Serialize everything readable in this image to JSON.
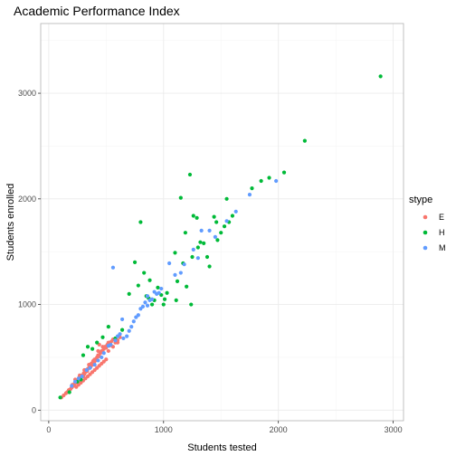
{
  "chart_data": {
    "type": "scatter",
    "title": "Academic Performance Index",
    "xlabel": "Students tested",
    "ylabel": "Students enrolled",
    "xlim": [
      -70,
      3090
    ],
    "ylim": [
      -100,
      3660
    ],
    "x_ticks": [
      0,
      1000,
      2000,
      3000
    ],
    "y_ticks": [
      0,
      1000,
      2000,
      3000
    ],
    "grid": true,
    "legend": {
      "title": "stype",
      "position": "right",
      "items": [
        {
          "label": "E",
          "color": "#F8766D"
        },
        {
          "label": "H",
          "color": "#00BA38"
        },
        {
          "label": "M",
          "color": "#619CFF"
        }
      ]
    },
    "series": [
      {
        "name": "E",
        "color": "#F8766D",
        "points": [
          [
            110,
            120
          ],
          [
            130,
            140
          ],
          [
            150,
            160
          ],
          [
            160,
            170
          ],
          [
            175,
            190
          ],
          [
            190,
            200
          ],
          [
            200,
            215
          ],
          [
            205,
            240
          ],
          [
            215,
            230
          ],
          [
            225,
            250
          ],
          [
            235,
            260
          ],
          [
            240,
            280
          ],
          [
            250,
            270
          ],
          [
            260,
            300
          ],
          [
            265,
            310
          ],
          [
            275,
            300
          ],
          [
            280,
            320
          ],
          [
            290,
            330
          ],
          [
            300,
            320
          ],
          [
            305,
            350
          ],
          [
            310,
            340
          ],
          [
            320,
            360
          ],
          [
            325,
            380
          ],
          [
            335,
            370
          ],
          [
            340,
            390
          ],
          [
            350,
            400
          ],
          [
            355,
            420
          ],
          [
            365,
            410
          ],
          [
            370,
            440
          ],
          [
            380,
            430
          ],
          [
            385,
            460
          ],
          [
            395,
            450
          ],
          [
            400,
            480
          ],
          [
            410,
            470
          ],
          [
            420,
            500
          ],
          [
            430,
            520
          ],
          [
            440,
            510
          ],
          [
            450,
            540
          ],
          [
            460,
            560
          ],
          [
            470,
            550
          ],
          [
            480,
            580
          ],
          [
            490,
            600
          ],
          [
            500,
            590
          ],
          [
            510,
            620
          ],
          [
            520,
            640
          ],
          [
            530,
            610
          ],
          [
            545,
            650
          ],
          [
            560,
            670
          ],
          [
            580,
            640
          ],
          [
            600,
            660
          ],
          [
            620,
            690
          ],
          [
            240,
            220
          ],
          [
            260,
            240
          ],
          [
            280,
            260
          ],
          [
            300,
            280
          ],
          [
            320,
            300
          ],
          [
            340,
            320
          ],
          [
            360,
            340
          ],
          [
            380,
            360
          ],
          [
            400,
            380
          ],
          [
            420,
            400
          ],
          [
            440,
            420
          ],
          [
            460,
            440
          ],
          [
            480,
            460
          ],
          [
            500,
            480
          ],
          [
            230,
            290
          ],
          [
            270,
            330
          ],
          [
            310,
            380
          ],
          [
            350,
            430
          ],
          [
            390,
            470
          ],
          [
            430,
            560
          ],
          [
            470,
            600
          ],
          [
            440,
            620
          ],
          [
            520,
            560
          ],
          [
            560,
            600
          ],
          [
            600,
            640
          ]
        ]
      },
      {
        "name": "H",
        "color": "#00BA38",
        "points": [
          [
            100,
            120
          ],
          [
            180,
            170
          ],
          [
            250,
            270
          ],
          [
            280,
            290
          ],
          [
            300,
            520
          ],
          [
            340,
            600
          ],
          [
            380,
            580
          ],
          [
            420,
            640
          ],
          [
            470,
            690
          ],
          [
            520,
            790
          ],
          [
            580,
            680
          ],
          [
            640,
            760
          ],
          [
            700,
            1100
          ],
          [
            750,
            1400
          ],
          [
            780,
            1180
          ],
          [
            800,
            1780
          ],
          [
            830,
            1300
          ],
          [
            850,
            1080
          ],
          [
            870,
            1060
          ],
          [
            880,
            1230
          ],
          [
            900,
            1000
          ],
          [
            920,
            1040
          ],
          [
            950,
            1160
          ],
          [
            980,
            1090
          ],
          [
            1000,
            1000
          ],
          [
            1030,
            1110
          ],
          [
            1100,
            1490
          ],
          [
            1120,
            1220
          ],
          [
            1150,
            2010
          ],
          [
            1170,
            1390
          ],
          [
            1190,
            1680
          ],
          [
            1200,
            1170
          ],
          [
            1230,
            2230
          ],
          [
            1250,
            1450
          ],
          [
            1260,
            1840
          ],
          [
            1300,
            1540
          ],
          [
            1350,
            1580
          ],
          [
            1380,
            1450
          ],
          [
            1400,
            1360
          ],
          [
            1440,
            1830
          ],
          [
            1460,
            1780
          ],
          [
            1470,
            1610
          ],
          [
            1500,
            1680
          ],
          [
            1530,
            1740
          ],
          [
            1550,
            2000
          ],
          [
            1570,
            1780
          ],
          [
            1600,
            1840
          ],
          [
            1770,
            2100
          ],
          [
            1850,
            2170
          ],
          [
            1920,
            2200
          ],
          [
            2050,
            2250
          ],
          [
            2230,
            2550
          ],
          [
            2890,
            3160
          ],
          [
            1290,
            1820
          ],
          [
            1240,
            1000
          ],
          [
            1110,
            1040
          ],
          [
            1010,
            1050
          ],
          [
            1320,
            1590
          ]
        ]
      },
      {
        "name": "M",
        "color": "#619CFF",
        "points": [
          [
            200,
            230
          ],
          [
            230,
            270
          ],
          [
            260,
            300
          ],
          [
            290,
            320
          ],
          [
            330,
            380
          ],
          [
            360,
            400
          ],
          [
            400,
            430
          ],
          [
            430,
            470
          ],
          [
            460,
            500
          ],
          [
            480,
            540
          ],
          [
            520,
            610
          ],
          [
            540,
            620
          ],
          [
            560,
            1350
          ],
          [
            580,
            660
          ],
          [
            600,
            700
          ],
          [
            620,
            720
          ],
          [
            650,
            680
          ],
          [
            680,
            700
          ],
          [
            700,
            750
          ],
          [
            720,
            790
          ],
          [
            740,
            840
          ],
          [
            760,
            880
          ],
          [
            780,
            900
          ],
          [
            800,
            960
          ],
          [
            820,
            980
          ],
          [
            840,
            1020
          ],
          [
            860,
            990
          ],
          [
            880,
            1040
          ],
          [
            900,
            1050
          ],
          [
            920,
            1120
          ],
          [
            940,
            1100
          ],
          [
            960,
            1110
          ],
          [
            980,
            1150
          ],
          [
            1050,
            1390
          ],
          [
            1100,
            1280
          ],
          [
            1150,
            1300
          ],
          [
            1180,
            1380
          ],
          [
            1260,
            1520
          ],
          [
            1300,
            1440
          ],
          [
            1330,
            1700
          ],
          [
            1400,
            1700
          ],
          [
            1450,
            1640
          ],
          [
            1550,
            1790
          ],
          [
            1630,
            1880
          ],
          [
            1750,
            2040
          ],
          [
            1980,
            2170
          ],
          [
            640,
            860
          ],
          [
            860,
            1080
          ]
        ]
      }
    ]
  }
}
